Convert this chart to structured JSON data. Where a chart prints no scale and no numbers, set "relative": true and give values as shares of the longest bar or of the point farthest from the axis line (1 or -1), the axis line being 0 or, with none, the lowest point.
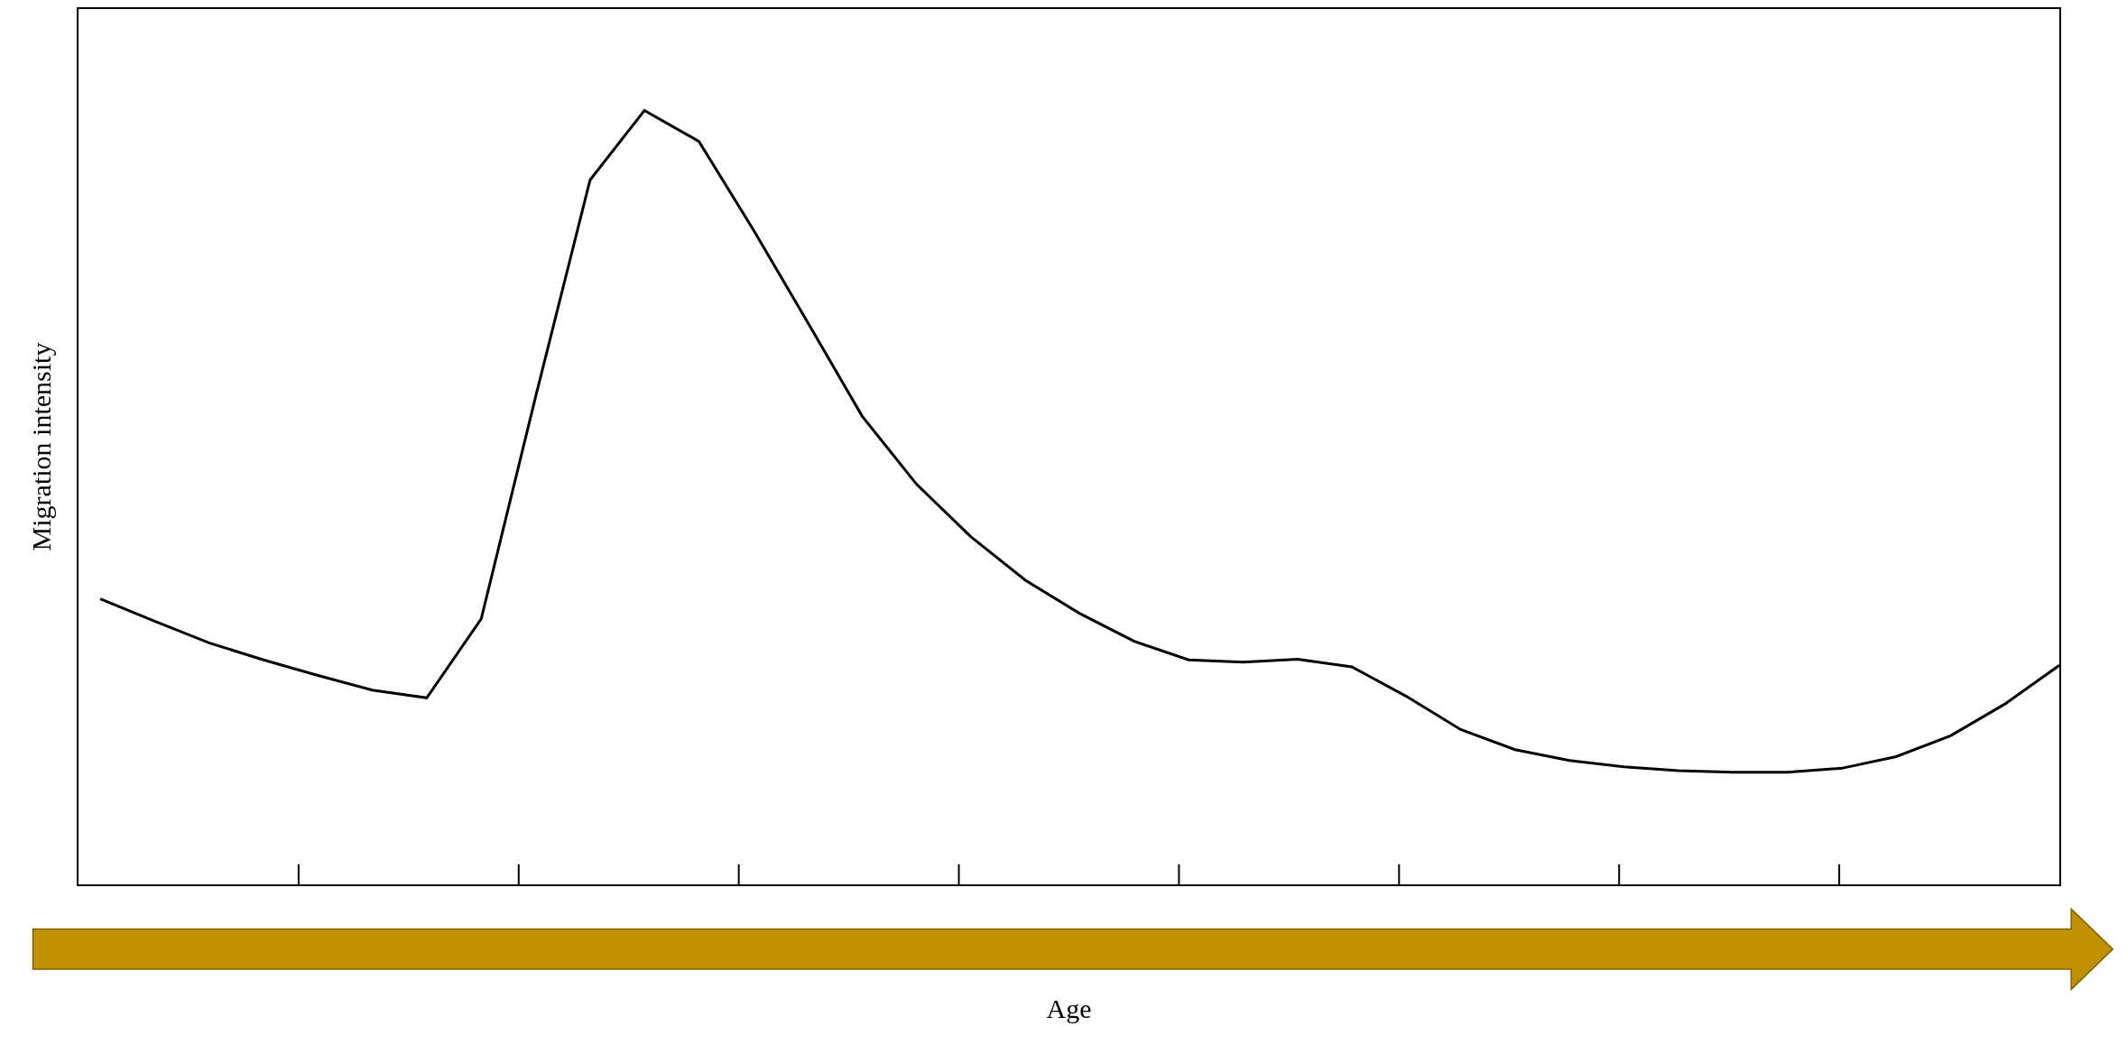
{
  "chart_data": {
    "type": "line",
    "relative": true,
    "xlabel": "Age",
    "ylabel": "Migration intensity",
    "color": "#000000",
    "marker": "none",
    "line_style": "solid",
    "legend": false,
    "categories": [
      null,
      null,
      null,
      null,
      null,
      null,
      null,
      null,
      null,
      null,
      null,
      null,
      null,
      null,
      null,
      null,
      null,
      null,
      null,
      null,
      null,
      null,
      null,
      null,
      null,
      null,
      null,
      null,
      null,
      null,
      null,
      null,
      null,
      null,
      null,
      null,
      null
    ],
    "values": [
      0.369,
      0.34,
      0.312,
      0.29,
      0.27,
      0.251,
      0.241,
      0.343,
      0.63,
      0.91,
      1.0,
      0.96,
      0.846,
      0.726,
      0.605,
      0.517,
      0.449,
      0.393,
      0.35,
      0.314,
      0.29,
      0.287,
      0.291,
      0.281,
      0.243,
      0.2,
      0.174,
      0.16,
      0.152,
      0.147,
      0.145,
      0.145,
      0.15,
      0.165,
      0.192,
      0.233,
      0.283
    ]
  }
}
